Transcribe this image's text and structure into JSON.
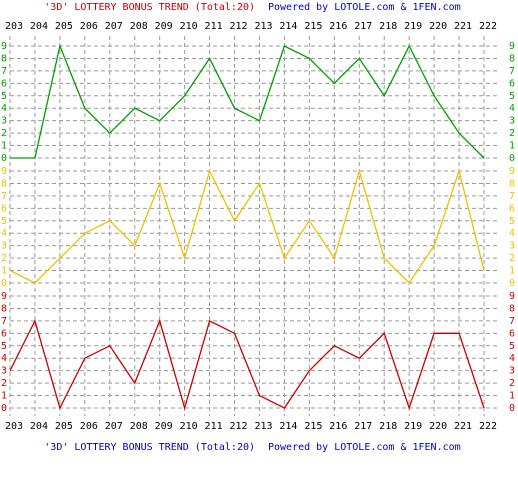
{
  "chart_data": {
    "type": "line",
    "title": "'3D' LOTTERY BONUS TREND (Total:20)",
    "subtitle": "Powered by LOTOLE.com & 1FEN.com",
    "categories": [
      "203",
      "204",
      "205",
      "206",
      "207",
      "208",
      "209",
      "210",
      "211",
      "212",
      "213",
      "214",
      "215",
      "216",
      "217",
      "218",
      "219",
      "220",
      "221",
      "222"
    ],
    "series": [
      {
        "color": "#00a000",
        "values": [
          0,
          0,
          9,
          4,
          2,
          4,
          3,
          5,
          8,
          4,
          3,
          9,
          8,
          6,
          8,
          5,
          9,
          5,
          2,
          0
        ]
      },
      {
        "color": "#f0c000",
        "values": [
          1,
          0,
          2,
          4,
          5,
          3,
          8,
          2,
          9,
          5,
          8,
          2,
          5,
          2,
          9,
          2,
          0,
          3,
          9,
          1
        ]
      },
      {
        "color": "#cc0000",
        "values": [
          3,
          7,
          0,
          4,
          5,
          2,
          7,
          0,
          7,
          6,
          1,
          0,
          3,
          5,
          4,
          6,
          0,
          6,
          6,
          0
        ]
      }
    ],
    "ylim": [
      0,
      9
    ],
    "yticks": [
      0,
      1,
      2,
      3,
      4,
      5,
      6,
      7,
      8,
      9
    ],
    "grid": true
  }
}
